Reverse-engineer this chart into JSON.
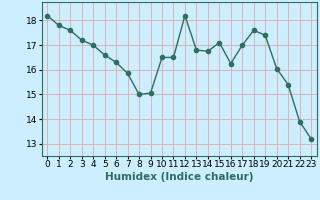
{
  "x": [
    0,
    1,
    2,
    3,
    4,
    5,
    6,
    7,
    8,
    9,
    10,
    11,
    12,
    13,
    14,
    15,
    16,
    17,
    18,
    19,
    20,
    21,
    22,
    23
  ],
  "y": [
    18.2,
    17.8,
    17.6,
    17.2,
    17.0,
    16.6,
    16.3,
    15.85,
    15.0,
    15.05,
    16.5,
    16.5,
    18.2,
    16.8,
    16.75,
    17.1,
    16.25,
    17.0,
    17.6,
    17.4,
    16.05,
    15.4,
    13.9,
    13.2
  ],
  "line_color": "#2d6e5e",
  "marker": "o",
  "bg_color": "#cceeff",
  "grid_color_major": "#ddaaaa",
  "grid_color_minor": "#ddaaaa",
  "xlabel": "Humidex (Indice chaleur)",
  "ylim": [
    12.5,
    18.75
  ],
  "xlim": [
    -0.5,
    23.5
  ],
  "yticks": [
    13,
    14,
    15,
    16,
    17,
    18
  ],
  "xticks": [
    0,
    1,
    2,
    3,
    4,
    5,
    6,
    7,
    8,
    9,
    10,
    11,
    12,
    13,
    14,
    15,
    16,
    17,
    18,
    19,
    20,
    21,
    22,
    23
  ],
  "tick_fontsize": 6.5,
  "xlabel_fontsize": 7.5,
  "linewidth": 1.0,
  "markersize": 3.0
}
